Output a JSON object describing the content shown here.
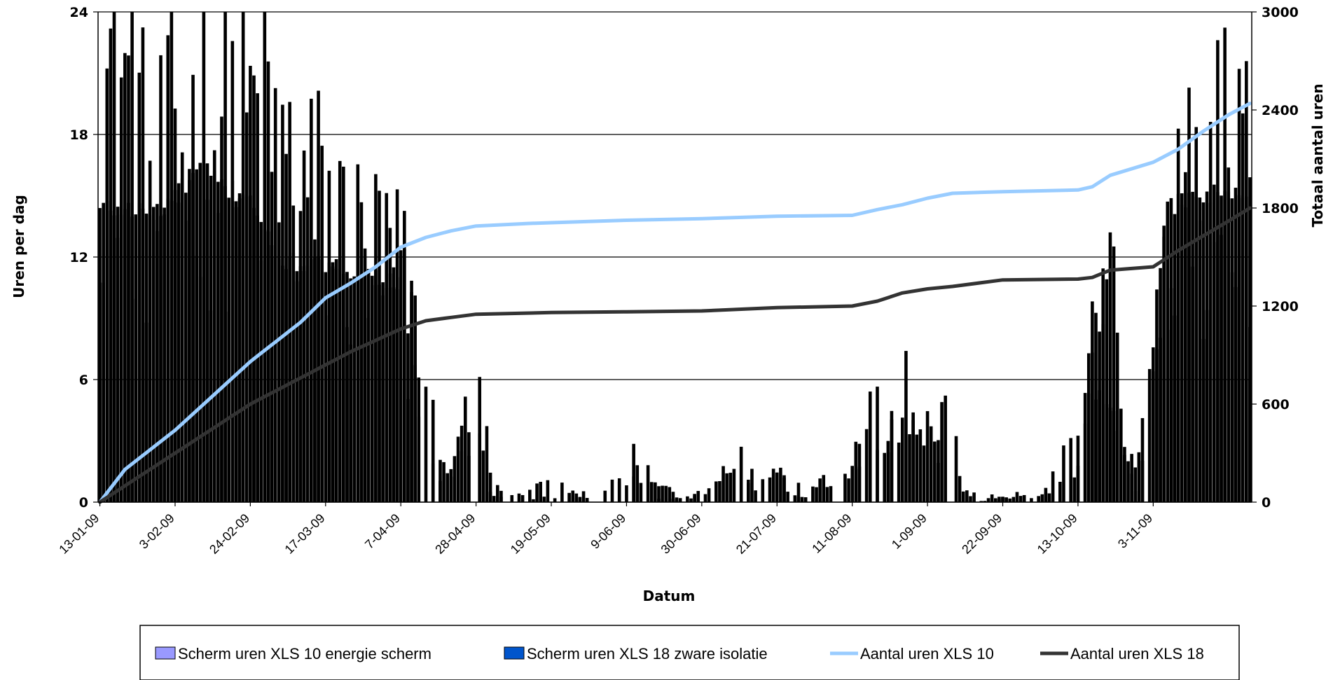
{
  "chart_data": {
    "type": "bar",
    "title": "",
    "xlabel": "Datum",
    "ylabel": "Uren per dag",
    "y2label": "Totaal aantal uren",
    "ylim": [
      0,
      24
    ],
    "y2lim": [
      0,
      3000
    ],
    "yticks": [
      "0",
      "6",
      "12",
      "18",
      "24"
    ],
    "y2ticks": [
      "0",
      "600",
      "1200",
      "1800",
      "2400",
      "3000"
    ],
    "grid": true,
    "legend_position": "bottom",
    "x_start": "13-01-09",
    "x_end": "30-11-09",
    "xtick_labels": [
      "13-01-09",
      "3-02-09",
      "24-02-09",
      "17-03-09",
      "7-04-09",
      "28-04-09",
      "19-05-09",
      "9-06-09",
      "30-06-09",
      "21-07-09",
      "11-08-09",
      "1-09-09",
      "22-09-09",
      "13-10-09",
      "3-11-09"
    ],
    "series": [
      {
        "name": "Scherm uren XLS 10 energie scherm",
        "kind": "bar",
        "color": "#9999ff",
        "keyframes": [
          [
            "13-01-09",
            23
          ],
          [
            "20-01-09",
            24
          ],
          [
            "27-01-09",
            16
          ],
          [
            "3-02-09",
            19
          ],
          [
            "10-02-09",
            21
          ],
          [
            "17-02-09",
            20
          ],
          [
            "24-02-09",
            21
          ],
          [
            "3-03-09",
            19
          ],
          [
            "10-03-09",
            17
          ],
          [
            "17-03-09",
            16
          ],
          [
            "24-03-09",
            14
          ],
          [
            "31-03-09",
            13.5
          ],
          [
            "7-04-09",
            12.5
          ],
          [
            "14-04-09",
            6
          ],
          [
            "18-04-09",
            3
          ],
          [
            "21-04-09",
            1.5
          ],
          [
            "24-04-09",
            4
          ],
          [
            "28-04-09",
            6
          ],
          [
            "1-05-09",
            3
          ],
          [
            "5-05-09",
            0.5
          ],
          [
            "12-05-09",
            0.4
          ],
          [
            "19-05-09",
            2
          ],
          [
            "26-05-09",
            0.3
          ],
          [
            "2-06-09",
            0.5
          ],
          [
            "7-06-09",
            1.5
          ],
          [
            "12-06-09",
            3
          ],
          [
            "18-06-09",
            1
          ],
          [
            "25-06-09",
            0.3
          ],
          [
            "30-06-09",
            0.3
          ],
          [
            "3-07-09",
            1
          ],
          [
            "8-07-09",
            2.8
          ],
          [
            "15-07-09",
            1.5
          ],
          [
            "21-07-09",
            2.5
          ],
          [
            "28-07-09",
            0.5
          ],
          [
            "4-08-09",
            1.5
          ],
          [
            "11-08-09",
            2
          ],
          [
            "18-08-09",
            6
          ],
          [
            "25-08-09",
            6.5
          ],
          [
            "1-09-09",
            7
          ],
          [
            "8-09-09",
            5
          ],
          [
            "12-09-09",
            0.5
          ],
          [
            "19-09-09",
            0.3
          ],
          [
            "25-09-09",
            0.5
          ],
          [
            "2-10-09",
            0.3
          ],
          [
            "8-10-09",
            2
          ],
          [
            "13-10-09",
            4
          ],
          [
            "17-10-09",
            11
          ],
          [
            "22-10-09",
            12
          ],
          [
            "25-10-09",
            5
          ],
          [
            "29-10-09",
            2.5
          ],
          [
            "3-11-09",
            9
          ],
          [
            "7-11-09",
            15
          ],
          [
            "14-11-09",
            16
          ],
          [
            "21-11-09",
            18
          ],
          [
            "26-11-09",
            20
          ],
          [
            "30-11-09",
            18
          ]
        ]
      },
      {
        "name": "Scherm uren XLS 18 zware isolatie",
        "kind": "bar",
        "color": "#000000",
        "keyframes": [
          [
            "13-01-09",
            14.5
          ],
          [
            "20-01-09",
            14.5
          ],
          [
            "27-01-09",
            14.3
          ],
          [
            "3-02-09",
            15
          ],
          [
            "10-02-09",
            16.5
          ],
          [
            "17-02-09",
            15.5
          ],
          [
            "24-02-09",
            15.3
          ],
          [
            "3-03-09",
            12
          ],
          [
            "10-03-09",
            11.8
          ],
          [
            "17-03-09",
            11.7
          ],
          [
            "24-03-09",
            11.5
          ],
          [
            "31-03-09",
            11.2
          ],
          [
            "7-04-09",
            10.8
          ],
          [
            "11-04-09",
            7
          ],
          [
            "14-04-09",
            2
          ],
          [
            "18-04-09",
            1
          ],
          [
            "21-04-09",
            1.5
          ],
          [
            "24-04-09",
            3.5
          ],
          [
            "28-04-09",
            5
          ],
          [
            "1-05-09",
            0.5
          ],
          [
            "8-05-09",
            0
          ],
          [
            "7-06-09",
            0.8
          ],
          [
            "12-06-09",
            2
          ],
          [
            "18-06-09",
            0.3
          ],
          [
            "25-06-09",
            0
          ],
          [
            "3-07-09",
            1.5
          ],
          [
            "8-07-09",
            2.2
          ],
          [
            "15-07-09",
            0.8
          ],
          [
            "21-07-09",
            1.5
          ],
          [
            "28-07-09",
            0.3
          ],
          [
            "4-08-09",
            1
          ],
          [
            "11-08-09",
            1.5
          ],
          [
            "18-08-09",
            3
          ],
          [
            "25-08-09",
            3.5
          ],
          [
            "1-09-09",
            4
          ],
          [
            "8-09-09",
            3.5
          ],
          [
            "12-09-09",
            0
          ],
          [
            "8-10-09",
            0.5
          ],
          [
            "13-10-09",
            1.5
          ],
          [
            "17-10-09",
            8.5
          ],
          [
            "22-10-09",
            8.5
          ],
          [
            "25-10-09",
            4
          ],
          [
            "29-10-09",
            1
          ],
          [
            "3-11-09",
            8.5
          ],
          [
            "7-11-09",
            14.5
          ],
          [
            "14-11-09",
            15
          ],
          [
            "21-11-09",
            15.2
          ],
          [
            "26-11-09",
            15.5
          ],
          [
            "30-11-09",
            15.5
          ]
        ]
      },
      {
        "name": "Aantal uren XLS 10",
        "kind": "line",
        "axis": "right",
        "color": "#99ccff",
        "points": [
          [
            "13-01-09",
            0
          ],
          [
            "20-01-09",
            200
          ],
          [
            "27-01-09",
            320
          ],
          [
            "3-02-09",
            440
          ],
          [
            "10-02-09",
            580
          ],
          [
            "17-02-09",
            720
          ],
          [
            "24-02-09",
            860
          ],
          [
            "3-03-09",
            980
          ],
          [
            "10-03-09",
            1100
          ],
          [
            "17-03-09",
            1250
          ],
          [
            "24-03-09",
            1340
          ],
          [
            "31-03-09",
            1440
          ],
          [
            "7-04-09",
            1560
          ],
          [
            "14-04-09",
            1620
          ],
          [
            "21-04-09",
            1660
          ],
          [
            "28-04-09",
            1690
          ],
          [
            "12-05-09",
            1705
          ],
          [
            "19-05-09",
            1710
          ],
          [
            "9-06-09",
            1725
          ],
          [
            "30-06-09",
            1735
          ],
          [
            "21-07-09",
            1750
          ],
          [
            "11-08-09",
            1755
          ],
          [
            "18-08-09",
            1790
          ],
          [
            "25-08-09",
            1820
          ],
          [
            "1-09-09",
            1860
          ],
          [
            "8-09-09",
            1890
          ],
          [
            "22-09-09",
            1900
          ],
          [
            "13-10-09",
            1910
          ],
          [
            "17-10-09",
            1930
          ],
          [
            "22-10-09",
            2000
          ],
          [
            "3-11-09",
            2080
          ],
          [
            "10-11-09",
            2160
          ],
          [
            "17-11-09",
            2270
          ],
          [
            "24-11-09",
            2370
          ],
          [
            "30-11-09",
            2440
          ]
        ]
      },
      {
        "name": "Aantal uren XLS 18",
        "kind": "line",
        "axis": "right",
        "color": "#333333",
        "points": [
          [
            "13-01-09",
            0
          ],
          [
            "20-01-09",
            100
          ],
          [
            "27-01-09",
            200
          ],
          [
            "3-02-09",
            300
          ],
          [
            "10-02-09",
            400
          ],
          [
            "17-02-09",
            500
          ],
          [
            "24-02-09",
            600
          ],
          [
            "3-03-09",
            680
          ],
          [
            "10-03-09",
            760
          ],
          [
            "17-03-09",
            840
          ],
          [
            "24-03-09",
            920
          ],
          [
            "31-03-09",
            990
          ],
          [
            "7-04-09",
            1060
          ],
          [
            "14-04-09",
            1110
          ],
          [
            "21-04-09",
            1130
          ],
          [
            "28-04-09",
            1150
          ],
          [
            "19-05-09",
            1160
          ],
          [
            "9-06-09",
            1165
          ],
          [
            "30-06-09",
            1170
          ],
          [
            "21-07-09",
            1190
          ],
          [
            "11-08-09",
            1200
          ],
          [
            "18-08-09",
            1230
          ],
          [
            "25-08-09",
            1280
          ],
          [
            "1-09-09",
            1305
          ],
          [
            "8-09-09",
            1320
          ],
          [
            "22-09-09",
            1360
          ],
          [
            "13-10-09",
            1365
          ],
          [
            "17-10-09",
            1375
          ],
          [
            "22-10-09",
            1420
          ],
          [
            "3-11-09",
            1440
          ],
          [
            "10-11-09",
            1540
          ],
          [
            "17-11-09",
            1630
          ],
          [
            "24-11-09",
            1720
          ],
          [
            "30-11-09",
            1800
          ]
        ]
      }
    ]
  }
}
